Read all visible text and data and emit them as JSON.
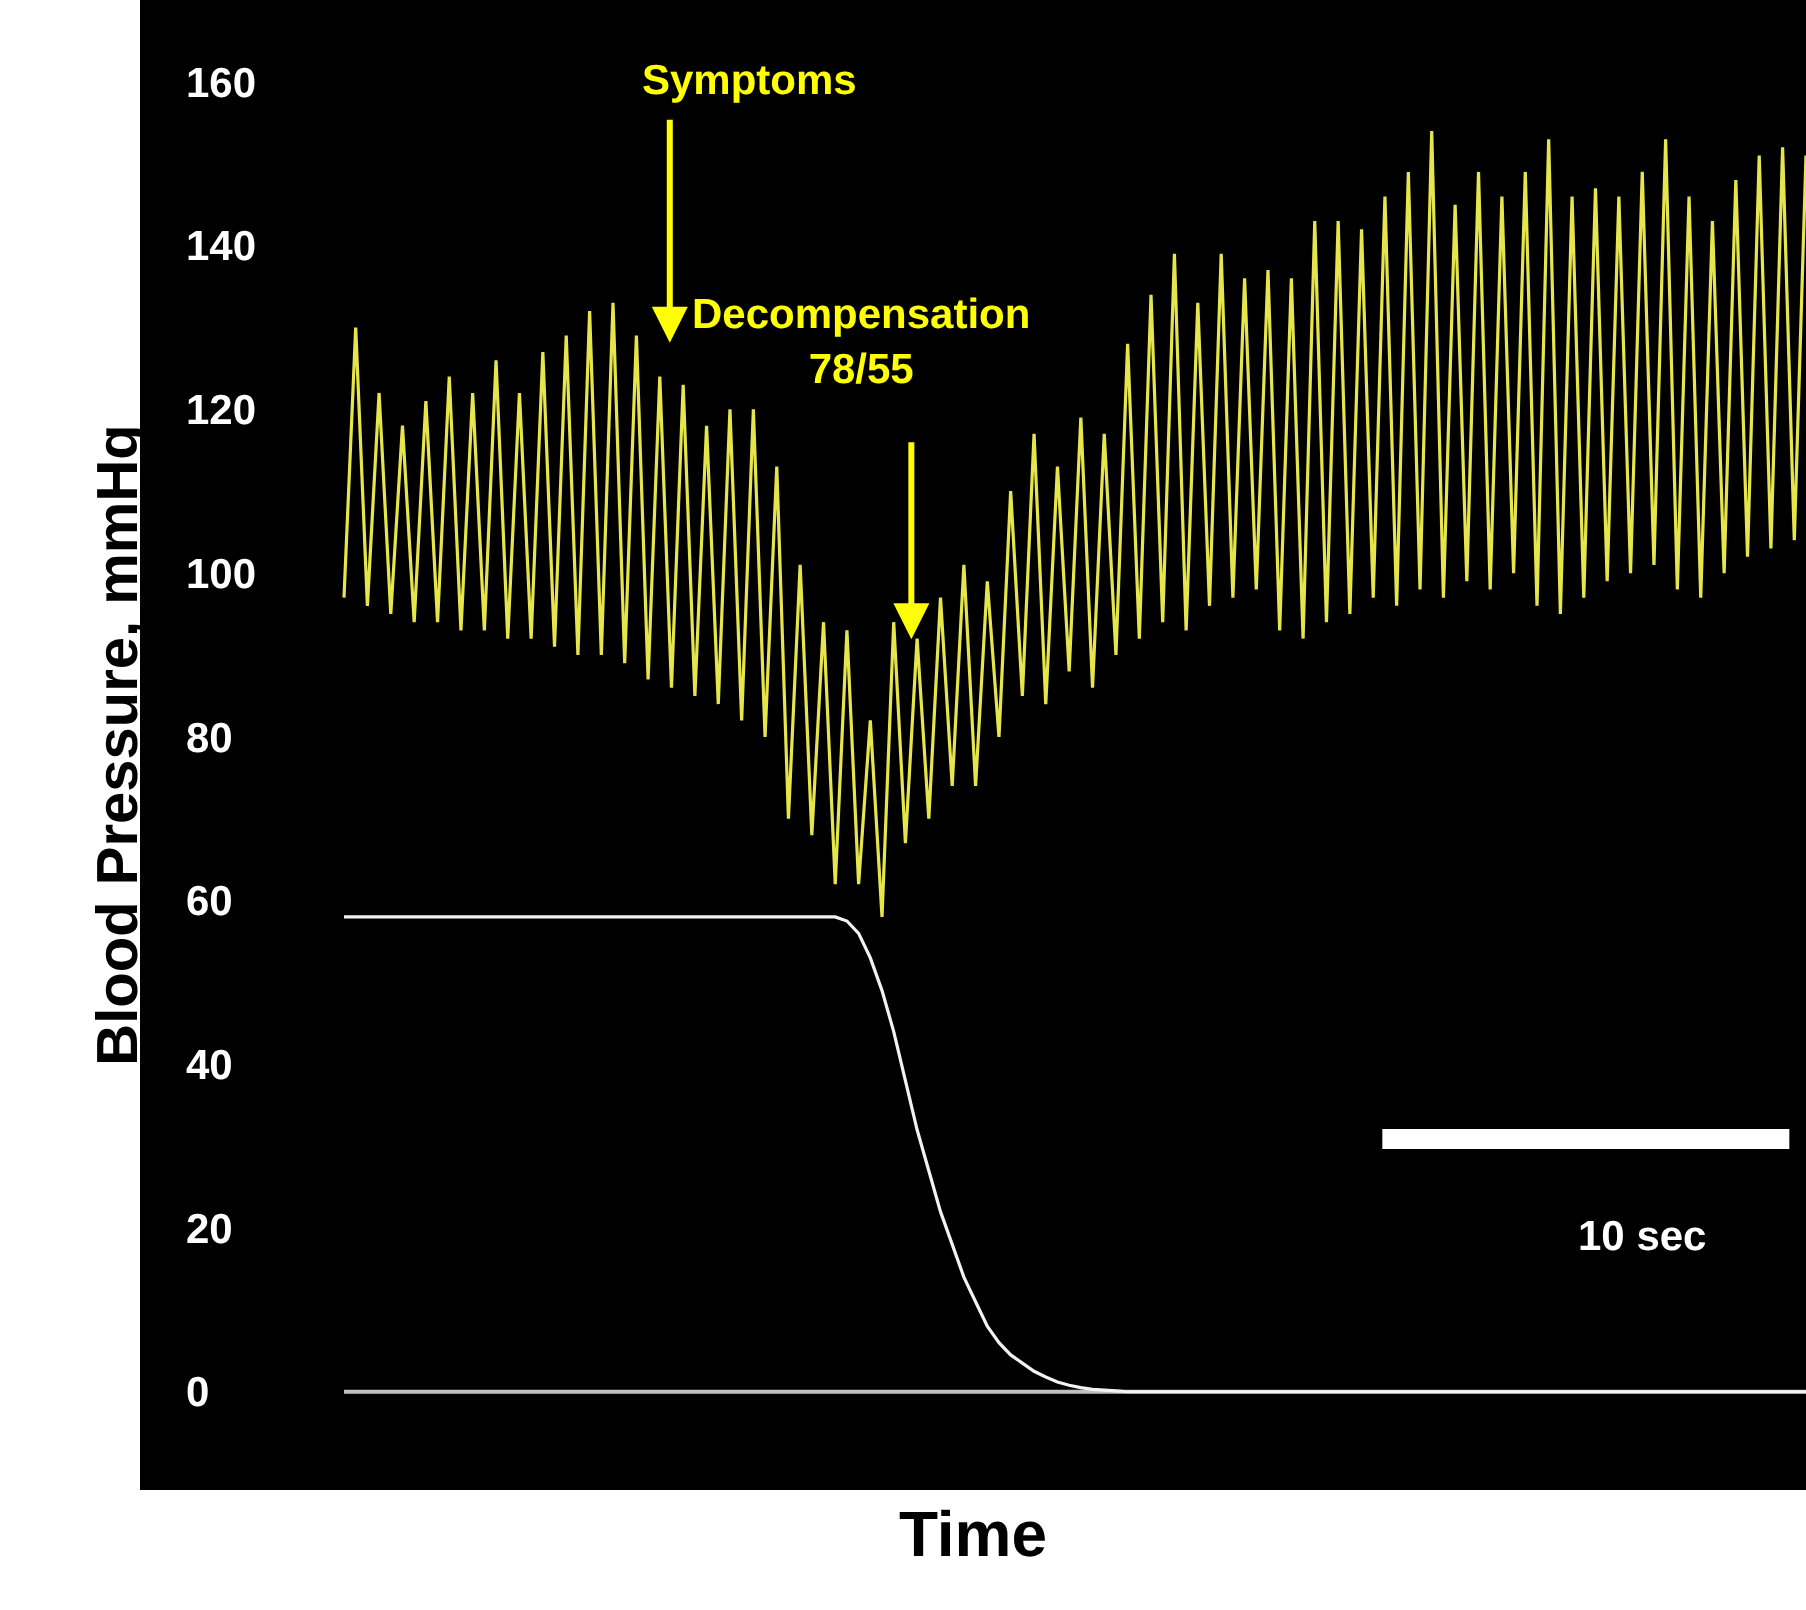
{
  "chart_data": {
    "type": "line",
    "xlabel": "Time",
    "ylabel": "Blood Pressure, mmHg",
    "categories": [
      null,
      null,
      null,
      null,
      null,
      null,
      null,
      null,
      null,
      null,
      null,
      null,
      null,
      null,
      null,
      null,
      null,
      null,
      null,
      null,
      null,
      null,
      null,
      null,
      null,
      null,
      null,
      null,
      null,
      null,
      null,
      null,
      null,
      null,
      null,
      null,
      null,
      null,
      null,
      null,
      null,
      null,
      null,
      null,
      null,
      null,
      null,
      null,
      null,
      null,
      null,
      null,
      null,
      null,
      null,
      null,
      null,
      null,
      null,
      null,
      null,
      null,
      null,
      null,
      null,
      null,
      null,
      null,
      null,
      null,
      null,
      null,
      null,
      null,
      null,
      null,
      null,
      null,
      null,
      null,
      null,
      null,
      null,
      null,
      null,
      null,
      null,
      null,
      null,
      null,
      null,
      null,
      null,
      null,
      null,
      null,
      null,
      null,
      null,
      null,
      null,
      null,
      null,
      null,
      null,
      null,
      null,
      null,
      null,
      null,
      null,
      null,
      null,
      null,
      null,
      null,
      null,
      null,
      null,
      null,
      null,
      null,
      null,
      null,
      null,
      null
    ],
    "series": [
      {
        "color": "#e6e64c",
        "values": [
          97,
          130,
          96,
          122,
          95,
          118,
          94,
          121,
          94,
          124,
          93,
          122,
          93,
          126,
          92,
          122,
          92,
          127,
          91,
          129,
          90,
          132,
          90,
          133,
          89,
          129,
          87,
          124,
          86,
          123,
          85,
          118,
          84,
          120,
          82,
          120,
          80,
          113,
          70,
          101,
          68,
          94,
          62,
          93,
          62,
          82,
          58,
          94,
          67,
          92,
          70,
          97,
          74,
          101,
          74,
          99,
          80,
          110,
          85,
          117,
          84,
          113,
          88,
          119,
          86,
          117,
          90,
          128,
          92,
          134,
          94,
          139,
          93,
          133,
          96,
          139,
          97,
          136,
          98,
          137,
          93,
          136,
          92,
          143,
          94,
          143,
          95,
          142,
          97,
          146,
          96,
          149,
          98,
          154,
          97,
          145,
          99,
          149,
          98,
          146,
          100,
          149,
          96,
          153,
          95,
          146,
          97,
          147,
          99,
          146,
          100,
          149,
          101,
          153,
          98,
          146,
          97,
          143,
          100,
          148,
          102,
          151,
          103,
          152,
          104,
          151
        ]
      },
      {
        "color": "#f2f2f2",
        "values": [
          58,
          58,
          58,
          58,
          58,
          58,
          58,
          58,
          58,
          58,
          58,
          58,
          58,
          58,
          58,
          58,
          58,
          58,
          58,
          58,
          58,
          58,
          58,
          58,
          58,
          58,
          58,
          58,
          58,
          58,
          58,
          58,
          58,
          58,
          58,
          58,
          58,
          58,
          58,
          58,
          58,
          58,
          58,
          57.5,
          56,
          53,
          49,
          44,
          38,
          32,
          27,
          22,
          18,
          14,
          11,
          8,
          6,
          4.5,
          3.5,
          2.5,
          1.8,
          1.2,
          0.8,
          0.5,
          0.3,
          0.2,
          0.1,
          0,
          0,
          0,
          0,
          0,
          0,
          0,
          0,
          0,
          0,
          0,
          0,
          0,
          0,
          0,
          0,
          0,
          0,
          0,
          0,
          0,
          0,
          0,
          0,
          0,
          0,
          0,
          0,
          0,
          0,
          0,
          0,
          0,
          0,
          0,
          0,
          0,
          0,
          0,
          0,
          0,
          0,
          0,
          0,
          0,
          0,
          0,
          0,
          0,
          0,
          0,
          0,
          0,
          0,
          0,
          0,
          0,
          0,
          0
        ]
      }
    ],
    "ylim": [
      -12,
      170
    ],
    "yticks": [
      0,
      20,
      40,
      60,
      80,
      100,
      120,
      140,
      160
    ],
    "tick_labels": "y",
    "marker": "none",
    "line_style": "solid",
    "ref_lines": [
      {
        "axis": "y",
        "value": 0,
        "color": "#bfbfbf"
      }
    ],
    "annotations": [
      "Symptoms",
      "Decompensation\n78/55",
      "10 sec"
    ]
  }
}
